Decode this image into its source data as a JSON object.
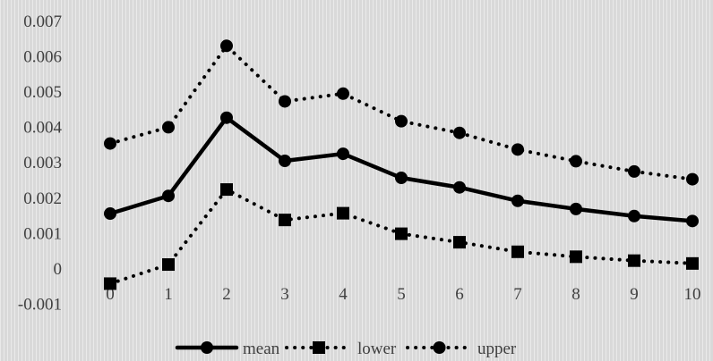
{
  "chart_data": {
    "type": "line",
    "categories": [
      "0",
      "1",
      "2",
      "3",
      "4",
      "5",
      "6",
      "7",
      "8",
      "9",
      "10"
    ],
    "series": [
      {
        "name": "mean",
        "style": "solid",
        "marker": "circle",
        "values": [
          0.00154,
          0.00204,
          0.00425,
          0.00303,
          0.00323,
          0.00255,
          0.00228,
          0.0019,
          0.00167,
          0.00147,
          0.00133
        ]
      },
      {
        "name": "lower",
        "style": "dotted",
        "marker": "square",
        "values": [
          -0.00044,
          0.0001,
          0.00222,
          0.00136,
          0.00155,
          0.00097,
          0.00073,
          0.00046,
          0.00032,
          0.00021,
          0.00013
        ]
      },
      {
        "name": "upper",
        "style": "dotted",
        "marker": "circle",
        "values": [
          0.00352,
          0.00398,
          0.00628,
          0.00471,
          0.00493,
          0.00415,
          0.00382,
          0.00335,
          0.00302,
          0.00273,
          0.00251
        ]
      }
    ],
    "yticks": [
      "-0.001",
      "0",
      "0.001",
      "0.002",
      "0.003",
      "0.004",
      "0.005",
      "0.006",
      "0.007"
    ],
    "ylim": [
      -0.001,
      0.007
    ],
    "grid": false,
    "legend_position": "bottom",
    "colors": {
      "line": "#000000",
      "text": "#404040",
      "background": "#d9d9d9"
    }
  }
}
